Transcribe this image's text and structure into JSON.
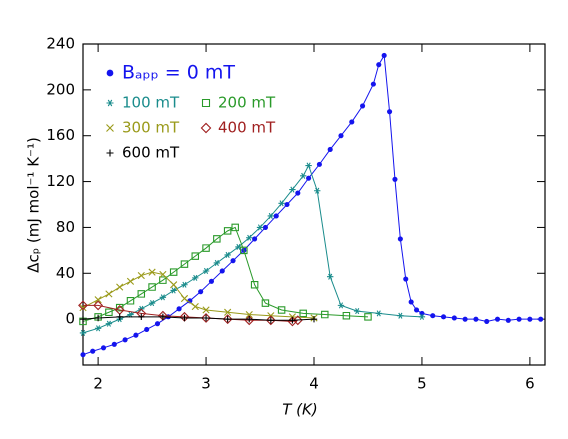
{
  "chart_data": {
    "type": "line",
    "xlabel": "T (K)",
    "ylabel": "Δcₚ (mJ mol⁻¹ K⁻¹)",
    "xlim": [
      1.86,
      6.14
    ],
    "ylim": [
      -40,
      240
    ],
    "xticks": [
      2,
      3,
      4,
      5,
      6
    ],
    "yticks": [
      0,
      40,
      80,
      120,
      160,
      200,
      240
    ],
    "series": [
      {
        "name": "Bₐₚₚ = 0 mT",
        "color": "#1414ee",
        "marker": "circle",
        "x": [
          1.86,
          1.95,
          2.05,
          2.15,
          2.25,
          2.35,
          2.45,
          2.55,
          2.65,
          2.75,
          2.85,
          2.95,
          3.05,
          3.15,
          3.25,
          3.35,
          3.45,
          3.55,
          3.65,
          3.75,
          3.85,
          3.95,
          4.05,
          4.15,
          4.25,
          4.35,
          4.45,
          4.55,
          4.6,
          4.65,
          4.7,
          4.75,
          4.8,
          4.85,
          4.9,
          4.95,
          5.0,
          5.1,
          5.2,
          5.3,
          5.4,
          5.5,
          5.6,
          5.7,
          5.8,
          5.9,
          6.0,
          6.1
        ],
        "values": [
          -31,
          -28,
          -25,
          -22,
          -18,
          -14,
          -9,
          -4,
          2,
          9,
          16,
          24,
          33,
          42,
          51,
          60,
          70,
          80,
          90,
          100,
          110,
          123,
          135,
          148,
          160,
          172,
          186,
          205,
          222,
          230,
          181,
          122,
          70,
          35,
          15,
          8,
          5,
          3,
          2,
          1,
          0,
          0,
          -2,
          0,
          -1,
          0,
          0,
          0
        ]
      },
      {
        "name": "100 mT",
        "color": "#1a8c8c",
        "marker": "asterisk",
        "x": [
          1.86,
          2.0,
          2.1,
          2.2,
          2.3,
          2.4,
          2.5,
          2.6,
          2.7,
          2.8,
          2.9,
          3.0,
          3.1,
          3.2,
          3.3,
          3.4,
          3.5,
          3.6,
          3.7,
          3.8,
          3.9,
          3.95,
          4.03,
          4.15,
          4.25,
          4.4,
          4.6,
          4.8,
          5.0
        ],
        "values": [
          -12,
          -8,
          -4,
          0,
          4,
          9,
          14,
          19,
          25,
          30,
          36,
          42,
          49,
          56,
          63,
          71,
          80,
          90,
          101,
          113,
          125,
          134,
          112,
          37,
          12,
          7,
          5,
          3,
          2
        ]
      },
      {
        "name": "200 mT",
        "color": "#2a9a2a",
        "marker": "square",
        "x": [
          1.86,
          2.0,
          2.1,
          2.2,
          2.3,
          2.4,
          2.5,
          2.6,
          2.7,
          2.8,
          2.9,
          3.0,
          3.1,
          3.2,
          3.27,
          3.35,
          3.45,
          3.55,
          3.7,
          3.9,
          4.1,
          4.3,
          4.5
        ],
        "values": [
          -2,
          2,
          6,
          10,
          16,
          22,
          28,
          34,
          41,
          48,
          55,
          62,
          70,
          77,
          80,
          60,
          30,
          14,
          8,
          5,
          4,
          3,
          2
        ]
      },
      {
        "name": "300 mT",
        "color": "#9a9a1a",
        "marker": "cross",
        "x": [
          1.86,
          2.0,
          2.1,
          2.2,
          2.3,
          2.4,
          2.5,
          2.6,
          2.7,
          2.8,
          2.9,
          3.0,
          3.2,
          3.4,
          3.6,
          3.8,
          4.0
        ],
        "values": [
          10,
          17,
          22,
          28,
          33,
          38,
          41,
          39,
          30,
          18,
          11,
          8,
          6,
          4,
          3,
          2,
          1
        ]
      },
      {
        "name": "400 mT",
        "color": "#a02020",
        "marker": "diamond",
        "x": [
          1.86,
          2.0,
          2.2,
          2.4,
          2.6,
          2.8,
          3.0,
          3.2,
          3.4,
          3.6,
          3.8,
          3.85
        ],
        "values": [
          12,
          12,
          8,
          5,
          3,
          2,
          1,
          0,
          -1,
          -1,
          -2,
          -1
        ]
      },
      {
        "name": "600 mT",
        "color": "#000000",
        "marker": "plus",
        "x": [
          1.86,
          2.0,
          2.2,
          2.4,
          2.6,
          2.8,
          3.0,
          3.2,
          3.4,
          3.6,
          3.8,
          4.0
        ],
        "values": [
          0,
          1,
          2,
          2,
          2,
          1,
          1,
          0,
          0,
          -1,
          -1,
          0
        ]
      }
    ]
  }
}
